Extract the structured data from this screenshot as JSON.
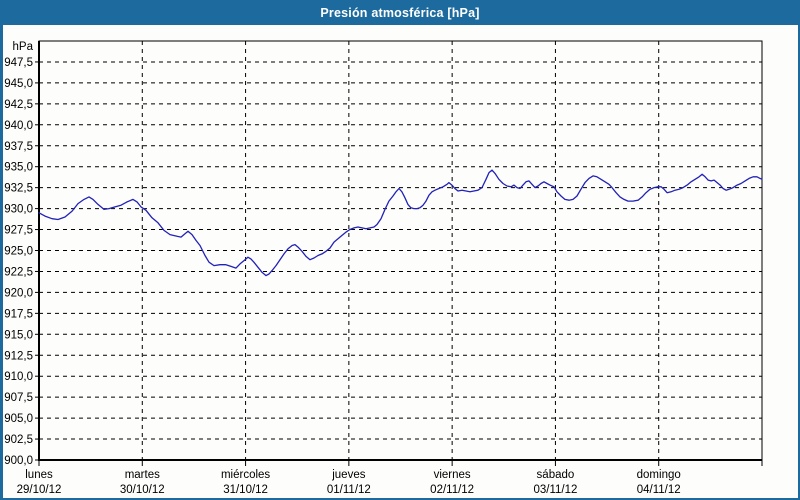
{
  "window": {
    "title": "Presión atmosférica [hPa]",
    "colors": {
      "titlebar": "#1d6b9e",
      "window_border": "#1d6b9e",
      "background": "#fdfdfb",
      "plot_border": "#000000",
      "grid": "#000000",
      "tick_text": "#000000",
      "line": "#2222b8"
    }
  },
  "chart_data": {
    "type": "line",
    "title": "Presión atmosférica [hPa]",
    "ylabel": "hPa",
    "xlabel": "",
    "ylim": [
      900,
      950
    ],
    "ytick_step": 2.5,
    "ytick_labels": [
      "947,5",
      "945,0",
      "942,5",
      "940,0",
      "937,5",
      "935,0",
      "932,5",
      "930,0",
      "927,5",
      "925,0",
      "922,5",
      "920,0",
      "917,5",
      "915,0",
      "912,5",
      "910,0",
      "907,5",
      "905,0",
      "902,5",
      "900,0"
    ],
    "xlim_days": [
      0,
      7
    ],
    "x_days": [
      {
        "name": "lunes",
        "date": "29/10/12"
      },
      {
        "name": "martes",
        "date": "30/10/12"
      },
      {
        "name": "miércoles",
        "date": "31/10/12"
      },
      {
        "name": "jueves",
        "date": "01/11/12"
      },
      {
        "name": "viernes",
        "date": "02/11/12"
      },
      {
        "name": "sábado",
        "date": "03/11/12"
      },
      {
        "name": "domingo",
        "date": "04/11/12"
      }
    ],
    "grid": "dashed",
    "legend_position": "none",
    "series": [
      {
        "name": "Presión atmosférica",
        "unit": "hPa",
        "color": "#2222b8",
        "points": [
          [
            0.0,
            929.5
          ],
          [
            0.058,
            929.1
          ],
          [
            0.126,
            928.8
          ],
          [
            0.184,
            928.7
          ],
          [
            0.252,
            929.0
          ],
          [
            0.32,
            929.7
          ],
          [
            0.378,
            930.6
          ],
          [
            0.436,
            931.1
          ],
          [
            0.484,
            931.4
          ],
          [
            0.523,
            931.1
          ],
          [
            0.571,
            930.5
          ],
          [
            0.629,
            929.9
          ],
          [
            0.678,
            930.0
          ],
          [
            0.736,
            930.2
          ],
          [
            0.794,
            930.4
          ],
          [
            0.852,
            930.8
          ],
          [
            0.91,
            931.1
          ],
          [
            0.949,
            930.8
          ],
          [
            0.988,
            930.2
          ],
          [
            1.036,
            929.8
          ],
          [
            1.094,
            928.9
          ],
          [
            1.152,
            928.3
          ],
          [
            1.21,
            927.4
          ],
          [
            1.268,
            926.9
          ],
          [
            1.336,
            926.7
          ],
          [
            1.375,
            926.6
          ],
          [
            1.414,
            927.0
          ],
          [
            1.443,
            927.3
          ],
          [
            1.481,
            926.9
          ],
          [
            1.52,
            926.2
          ],
          [
            1.559,
            925.6
          ],
          [
            1.607,
            924.4
          ],
          [
            1.646,
            923.6
          ],
          [
            1.694,
            923.2
          ],
          [
            1.752,
            923.3
          ],
          [
            1.81,
            923.3
          ],
          [
            1.859,
            923.1
          ],
          [
            1.907,
            922.9
          ],
          [
            1.946,
            923.4
          ],
          [
            1.985,
            923.8
          ],
          [
            2.023,
            924.2
          ],
          [
            2.052,
            924.0
          ],
          [
            2.081,
            923.6
          ],
          [
            2.12,
            923.0
          ],
          [
            2.159,
            922.4
          ],
          [
            2.198,
            922.0
          ],
          [
            2.227,
            922.2
          ],
          [
            2.256,
            922.6
          ],
          [
            2.295,
            923.2
          ],
          [
            2.333,
            923.9
          ],
          [
            2.372,
            924.6
          ],
          [
            2.411,
            925.2
          ],
          [
            2.45,
            925.6
          ],
          [
            2.479,
            925.7
          ],
          [
            2.508,
            925.4
          ],
          [
            2.546,
            924.9
          ],
          [
            2.585,
            924.3
          ],
          [
            2.624,
            923.9
          ],
          [
            2.663,
            924.1
          ],
          [
            2.701,
            924.4
          ],
          [
            2.74,
            924.6
          ],
          [
            2.779,
            924.9
          ],
          [
            2.817,
            925.3
          ],
          [
            2.856,
            926.0
          ],
          [
            2.895,
            926.4
          ],
          [
            2.934,
            926.8
          ],
          [
            2.972,
            927.2
          ],
          [
            3.011,
            927.5
          ],
          [
            3.05,
            927.7
          ],
          [
            3.088,
            927.8
          ],
          [
            3.127,
            927.7
          ],
          [
            3.166,
            927.6
          ],
          [
            3.205,
            927.7
          ],
          [
            3.243,
            927.8
          ],
          [
            3.272,
            928.1
          ],
          [
            3.311,
            928.8
          ],
          [
            3.35,
            929.9
          ],
          [
            3.388,
            930.9
          ],
          [
            3.427,
            931.5
          ],
          [
            3.456,
            932.0
          ],
          [
            3.485,
            932.4
          ],
          [
            3.514,
            932.0
          ],
          [
            3.543,
            931.3
          ],
          [
            3.572,
            930.5
          ],
          [
            3.601,
            930.1
          ],
          [
            3.63,
            930.0
          ],
          [
            3.66,
            930.0
          ],
          [
            3.689,
            930.1
          ],
          [
            3.718,
            930.4
          ],
          [
            3.747,
            930.9
          ],
          [
            3.776,
            931.6
          ],
          [
            3.805,
            932.0
          ],
          [
            3.834,
            932.2
          ],
          [
            3.872,
            932.4
          ],
          [
            3.911,
            932.6
          ],
          [
            3.95,
            932.9
          ],
          [
            3.969,
            933.1
          ],
          [
            3.998,
            932.8
          ],
          [
            4.027,
            932.4
          ],
          [
            4.057,
            932.1
          ],
          [
            4.095,
            932.2
          ],
          [
            4.134,
            932.1
          ],
          [
            4.173,
            932.0
          ],
          [
            4.211,
            932.1
          ],
          [
            4.25,
            932.2
          ],
          [
            4.289,
            932.5
          ],
          [
            4.328,
            933.5
          ],
          [
            4.357,
            934.3
          ],
          [
            4.386,
            934.6
          ],
          [
            4.415,
            934.2
          ],
          [
            4.453,
            933.5
          ],
          [
            4.492,
            933.0
          ],
          [
            4.531,
            932.7
          ],
          [
            4.57,
            932.6
          ],
          [
            4.599,
            932.8
          ],
          [
            4.628,
            932.5
          ],
          [
            4.657,
            932.4
          ],
          [
            4.686,
            932.8
          ],
          [
            4.715,
            933.2
          ],
          [
            4.744,
            933.3
          ],
          [
            4.773,
            932.9
          ],
          [
            4.802,
            932.5
          ],
          [
            4.831,
            932.7
          ],
          [
            4.86,
            933.0
          ],
          [
            4.889,
            933.2
          ],
          [
            4.918,
            933.0
          ],
          [
            4.947,
            932.8
          ],
          [
            4.986,
            932.6
          ],
          [
            5.015,
            932.0
          ],
          [
            5.054,
            931.5
          ],
          [
            5.092,
            931.1
          ],
          [
            5.131,
            931.0
          ],
          [
            5.17,
            931.1
          ],
          [
            5.209,
            931.5
          ],
          [
            5.247,
            932.3
          ],
          [
            5.286,
            933.1
          ],
          [
            5.325,
            933.6
          ],
          [
            5.364,
            933.9
          ],
          [
            5.402,
            933.8
          ],
          [
            5.441,
            933.5
          ],
          [
            5.48,
            933.2
          ],
          [
            5.519,
            932.9
          ],
          [
            5.548,
            932.5
          ],
          [
            5.587,
            931.9
          ],
          [
            5.625,
            931.4
          ],
          [
            5.664,
            931.1
          ],
          [
            5.703,
            930.9
          ],
          [
            5.751,
            930.9
          ],
          [
            5.8,
            931.0
          ],
          [
            5.839,
            931.4
          ],
          [
            5.877,
            931.9
          ],
          [
            5.916,
            932.3
          ],
          [
            5.955,
            932.5
          ],
          [
            5.994,
            932.6
          ],
          [
            6.023,
            932.6
          ],
          [
            6.052,
            932.3
          ],
          [
            6.081,
            931.9
          ],
          [
            6.12,
            932.0
          ],
          [
            6.158,
            932.2
          ],
          [
            6.197,
            932.3
          ],
          [
            6.236,
            932.5
          ],
          [
            6.275,
            932.8
          ],
          [
            6.314,
            933.2
          ],
          [
            6.352,
            933.5
          ],
          [
            6.391,
            933.8
          ],
          [
            6.42,
            934.1
          ],
          [
            6.449,
            933.8
          ],
          [
            6.478,
            933.4
          ],
          [
            6.507,
            933.3
          ],
          [
            6.536,
            933.4
          ],
          [
            6.565,
            933.1
          ],
          [
            6.594,
            932.8
          ],
          [
            6.623,
            932.4
          ],
          [
            6.652,
            932.2
          ],
          [
            6.681,
            932.3
          ],
          [
            6.72,
            932.5
          ],
          [
            6.759,
            932.8
          ],
          [
            6.797,
            933.0
          ],
          [
            6.836,
            933.3
          ],
          [
            6.875,
            933.6
          ],
          [
            6.914,
            933.8
          ],
          [
            6.952,
            933.8
          ],
          [
            6.981,
            933.6
          ],
          [
            7.0,
            933.5
          ]
        ]
      }
    ]
  }
}
